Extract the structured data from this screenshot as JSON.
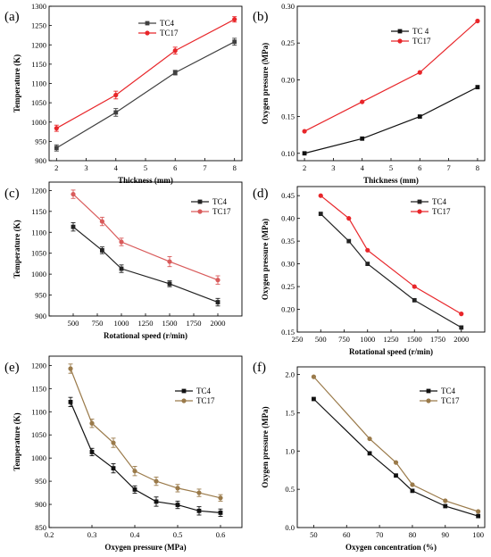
{
  "figure": {
    "panels": [
      "(a)",
      "(b)",
      "(c)",
      "(d)",
      "(e)",
      "(f)"
    ]
  },
  "chart_data": [
    {
      "panel": "(a)",
      "type": "line",
      "xlabel": "Thickness (mm)",
      "ylabel": "Temperature (K)",
      "xlim": [
        1.75,
        8.25
      ],
      "ylim": [
        900,
        1300
      ],
      "xticks": [
        2,
        3,
        4,
        5,
        6,
        7,
        8
      ],
      "yticks": [
        900,
        950,
        1000,
        1050,
        1100,
        1150,
        1200,
        1250,
        1300
      ],
      "error_bars": true,
      "legend_position": "top-center",
      "series": [
        {
          "name": "TC4",
          "color": "#404040",
          "marker": "square",
          "x": [
            2,
            4,
            6,
            8
          ],
          "y": [
            933,
            1025,
            1128,
            1208
          ],
          "err": [
            8,
            10,
            6,
            9
          ]
        },
        {
          "name": "TC17",
          "color": "#e8262a",
          "marker": "circle",
          "x": [
            2,
            4,
            6,
            8
          ],
          "y": [
            984,
            1070,
            1185,
            1266
          ],
          "err": [
            8,
            10,
            9,
            7
          ]
        }
      ]
    },
    {
      "panel": "(b)",
      "type": "line",
      "xlabel": "Thickness (mm)",
      "ylabel": "Oxygen pressure (MPa)",
      "xlim": [
        1.75,
        8.25
      ],
      "ylim": [
        0.09,
        0.3
      ],
      "xticks": [
        2,
        3,
        4,
        5,
        6,
        7,
        8
      ],
      "yticks": [
        0.1,
        0.15,
        0.2,
        0.25,
        0.3
      ],
      "ytick_labels": [
        "0.10",
        "0.15",
        "0.20",
        "0.25",
        "0.30"
      ],
      "legend_position": "top-center",
      "series": [
        {
          "name": "TC 4",
          "color": "#111111",
          "marker": "square",
          "x": [
            2,
            4,
            6,
            8
          ],
          "y": [
            0.1,
            0.12,
            0.15,
            0.19
          ]
        },
        {
          "name": "TC17",
          "color": "#e8262a",
          "marker": "circle",
          "x": [
            2,
            4,
            6,
            8
          ],
          "y": [
            0.13,
            0.17,
            0.21,
            0.28
          ]
        }
      ]
    },
    {
      "panel": "(c)",
      "type": "line",
      "xlabel": "Rotational speed (r/min)",
      "ylabel": "Temperature (K)",
      "xlim": [
        250,
        2250
      ],
      "ylim": [
        900,
        1220
      ],
      "xticks": [
        500,
        750,
        1000,
        1250,
        1500,
        1750,
        2000
      ],
      "yticks": [
        900,
        950,
        1000,
        1050,
        1100,
        1150,
        1200
      ],
      "error_bars": true,
      "legend_position": "top-right",
      "series": [
        {
          "name": "TC4",
          "color": "#222222",
          "marker": "square",
          "x": [
            500,
            800,
            1000,
            1500,
            2000
          ],
          "y": [
            1113,
            1057,
            1013,
            977,
            933
          ],
          "err": [
            10,
            8,
            9,
            7,
            9
          ]
        },
        {
          "name": "TC17",
          "color": "#d95b5b",
          "marker": "circle",
          "x": [
            500,
            800,
            1000,
            1500,
            2000
          ],
          "y": [
            1191,
            1126,
            1077,
            1030,
            986
          ],
          "err": [
            10,
            10,
            9,
            12,
            10
          ]
        }
      ]
    },
    {
      "panel": "(d)",
      "type": "line",
      "xlabel": "Rotational speed (r/min)",
      "ylabel": "Oxygen pressure (MPa)",
      "xlim": [
        250,
        2250
      ],
      "ylim": [
        0.15,
        0.47
      ],
      "xticks": [
        250,
        500,
        750,
        1000,
        1250,
        1500,
        1750,
        2000
      ],
      "yticks": [
        0.15,
        0.2,
        0.25,
        0.3,
        0.35,
        0.4,
        0.45
      ],
      "ytick_labels": [
        "0.15",
        "0.20",
        "0.25",
        "0.30",
        "0.35",
        "0.40",
        "0.45"
      ],
      "legend_position": "top-right",
      "series": [
        {
          "name": "TC4",
          "color": "#222222",
          "marker": "square",
          "x": [
            500,
            800,
            1000,
            1500,
            2000
          ],
          "y": [
            0.41,
            0.35,
            0.3,
            0.22,
            0.16
          ]
        },
        {
          "name": "TC17",
          "color": "#e8262a",
          "marker": "circle",
          "x": [
            500,
            800,
            1000,
            1500,
            2000
          ],
          "y": [
            0.45,
            0.4,
            0.33,
            0.25,
            0.19
          ]
        }
      ]
    },
    {
      "panel": "(e)",
      "type": "line",
      "xlabel": "Oxygen pressure (MPa)",
      "ylabel": "Temperature (K)",
      "xlim": [
        0.2,
        0.65
      ],
      "ylim": [
        850,
        1220
      ],
      "xticks": [
        0.2,
        0.3,
        0.4,
        0.5,
        0.6
      ],
      "xtick_labels": [
        "0.2",
        "0.3",
        "0.4",
        "0.5",
        "0.6"
      ],
      "yticks": [
        850,
        900,
        950,
        1000,
        1050,
        1100,
        1150,
        1200
      ],
      "error_bars": true,
      "legend_position": "top-center",
      "series": [
        {
          "name": "TC4",
          "color": "#111111",
          "marker": "square",
          "x": [
            0.25,
            0.3,
            0.35,
            0.4,
            0.45,
            0.5,
            0.55,
            0.6
          ],
          "y": [
            1121,
            1013,
            978,
            932,
            906,
            899,
            886,
            882
          ],
          "err": [
            10,
            8,
            10,
            8,
            10,
            8,
            9,
            8
          ]
        },
        {
          "name": "TC17",
          "color": "#9a7a4a",
          "marker": "circle",
          "x": [
            0.25,
            0.3,
            0.35,
            0.4,
            0.45,
            0.5,
            0.55,
            0.6
          ],
          "y": [
            1193,
            1075,
            1033,
            972,
            950,
            935,
            925,
            914
          ],
          "err": [
            10,
            9,
            10,
            10,
            9,
            8,
            8,
            7
          ]
        }
      ]
    },
    {
      "panel": "(f)",
      "type": "line",
      "xlabel": "Oxygen concentration (%)",
      "ylabel": "Oxygen pressure (MPa)",
      "xlim": [
        45,
        102
      ],
      "ylim": [
        0.0,
        2.1
      ],
      "xticks": [
        50,
        60,
        70,
        80,
        90,
        100
      ],
      "yticks": [
        0.0,
        0.5,
        1.0,
        1.5,
        2.0
      ],
      "ytick_labels": [
        "0.0",
        "0.5",
        "1.0",
        "1.5",
        "2.0"
      ],
      "legend_position": "top-right",
      "series": [
        {
          "name": "TC4",
          "color": "#111111",
          "marker": "square",
          "x": [
            50,
            67,
            75,
            80,
            90,
            100
          ],
          "y": [
            1.68,
            0.97,
            0.68,
            0.48,
            0.28,
            0.15
          ]
        },
        {
          "name": "TC17",
          "color": "#9a7a4a",
          "marker": "circle",
          "x": [
            50,
            67,
            75,
            80,
            90,
            100
          ],
          "y": [
            1.97,
            1.16,
            0.85,
            0.56,
            0.35,
            0.21
          ]
        }
      ]
    }
  ]
}
